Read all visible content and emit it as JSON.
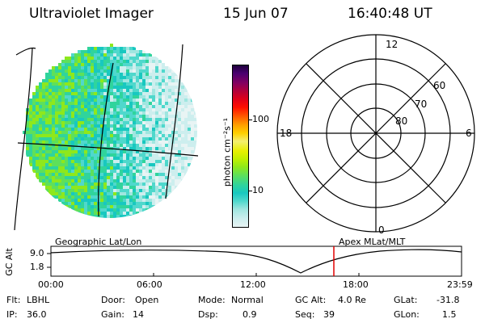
{
  "header": {
    "instrument": "Ultraviolet Imager",
    "date": "15 Jun 07",
    "time": "16:40:48 UT"
  },
  "colorbar": {
    "unit_label": "photon cm⁻²s⁻¹",
    "tick_100": "100",
    "tick_10": "10",
    "colors": [
      "#e8f4f4",
      "#cdeeee",
      "#9fe6e0",
      "#4fd8cc",
      "#18c8c0",
      "#30d49c",
      "#5ee05a",
      "#8ee81c",
      "#c0f000",
      "#e8f000",
      "#f4f070",
      "#ffd000",
      "#ffa000",
      "#ff6000",
      "#ff1000",
      "#e00018",
      "#b40038",
      "#840060",
      "#4a0070",
      "#1e003c"
    ]
  },
  "polar": {
    "mlt_top": "12",
    "mlt_left": "18",
    "mlt_right": "6",
    "mlt_bottom": "0",
    "lat_60": "60",
    "lat_70": "70",
    "lat_80": "80"
  },
  "coords": {
    "left": "Geographic Lat/Lon",
    "right": "Apex  MLat/MLT"
  },
  "timeline": {
    "y_axis_label": "GC Alt",
    "y_tick_high": "9.0",
    "y_tick_low": "1.8",
    "x_ticks": [
      "00:00",
      "06:00",
      "12:00",
      "18:00",
      "23:59"
    ],
    "cursor_color": "#e00000"
  },
  "footer": [
    [
      {
        "label": "Flt:",
        "value": "LBHL"
      },
      {
        "label": "Door:",
        "value": "Open"
      },
      {
        "label": "Mode:",
        "value": "Normal"
      },
      {
        "label": "GC Alt:",
        "value": "4.0 Re"
      },
      {
        "label": "GLat:",
        "value": "-31.8"
      }
    ],
    [
      {
        "label": "IP:",
        "value": "36.0"
      },
      {
        "label": "Gain:",
        "value": "14"
      },
      {
        "label": "Dsp:",
        "value": "0.9"
      },
      {
        "label": "Seq:",
        "value": "39"
      },
      {
        "label": "GLon:",
        "value": "1.5"
      }
    ]
  ]
}
